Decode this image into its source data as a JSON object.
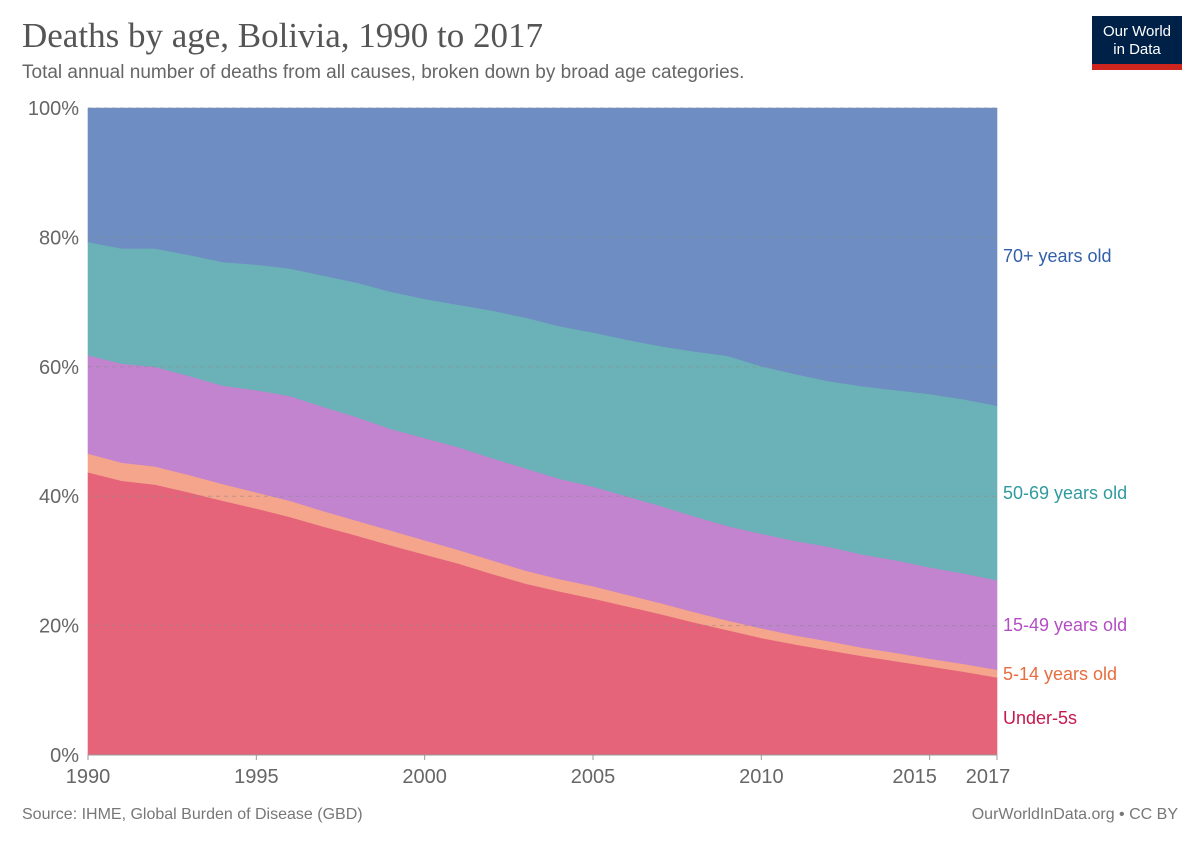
{
  "header": {
    "title": "Deaths by age, Bolivia, 1990 to 2017",
    "subtitle": "Total annual number of deaths from all causes, broken down by broad age categories."
  },
  "logo": {
    "line1": "Our World",
    "line2": "in Data"
  },
  "footer": {
    "source": "Source: IHME, Global Burden of Disease (GBD)",
    "license": "OurWorldInData.org • CC BY"
  },
  "chart_data": {
    "type": "area",
    "stacked": true,
    "normalized": true,
    "x": [
      1990,
      1991,
      1992,
      1993,
      1994,
      1995,
      1996,
      1997,
      1998,
      1999,
      2000,
      2001,
      2002,
      2003,
      2004,
      2005,
      2006,
      2007,
      2008,
      2009,
      2010,
      2011,
      2012,
      2013,
      2014,
      2015,
      2016,
      2017
    ],
    "xlim": [
      1990,
      2017
    ],
    "ylim": [
      0,
      100
    ],
    "y_ticks": [
      "0%",
      "20%",
      "40%",
      "60%",
      "80%",
      "100%"
    ],
    "x_ticks": [
      "1990",
      "1995",
      "2000",
      "2005",
      "2010",
      "2015",
      "2017"
    ],
    "grid": "horizontal dashed",
    "legend": "right, inline labels",
    "series": [
      {
        "name": "Under-5s",
        "color": "#e56479",
        "label_color": "#c6194f",
        "values": [
          43.7,
          42.4,
          41.8,
          40.6,
          39.3,
          38.1,
          36.8,
          35.3,
          33.9,
          32.4,
          31.0,
          29.6,
          28.0,
          26.5,
          25.3,
          24.2,
          23.0,
          21.8,
          20.5,
          19.3,
          18.1,
          17.1,
          16.2,
          15.3,
          14.5,
          13.7,
          12.9,
          12.0
        ]
      },
      {
        "name": "5-14 years old",
        "color": "#f4a58c",
        "label_color": "#e56d3f",
        "values": [
          2.9,
          2.8,
          2.8,
          2.7,
          2.6,
          2.5,
          2.5,
          2.4,
          2.3,
          2.3,
          2.2,
          2.1,
          2.1,
          2.0,
          1.9,
          1.9,
          1.8,
          1.7,
          1.6,
          1.5,
          1.5,
          1.4,
          1.4,
          1.3,
          1.3,
          1.2,
          1.2,
          1.2
        ]
      },
      {
        "name": "15-49 years old",
        "color": "#c283cf",
        "label_color": "#b34ec4",
        "values": [
          15.2,
          15.3,
          15.4,
          15.3,
          15.2,
          15.8,
          16.2,
          16.1,
          16.0,
          15.7,
          15.8,
          15.9,
          15.8,
          15.8,
          15.5,
          15.4,
          15.2,
          15.0,
          14.8,
          14.6,
          14.6,
          14.6,
          14.6,
          14.4,
          14.3,
          14.1,
          14.0,
          13.8
        ]
      },
      {
        "name": "50-69 years old",
        "color": "#6ab2b7",
        "label_color": "#2f9a9f",
        "values": [
          17.5,
          17.8,
          18.3,
          18.7,
          19.1,
          19.4,
          19.7,
          20.3,
          20.8,
          21.2,
          21.5,
          22.0,
          22.8,
          23.3,
          23.6,
          23.8,
          24.2,
          24.7,
          25.5,
          26.3,
          25.9,
          25.8,
          25.6,
          26.0,
          26.3,
          26.8,
          26.9,
          27.0
        ]
      },
      {
        "name": "70+ years old",
        "color": "#6e8dc2",
        "label_color": "#3360a9",
        "values": [
          20.7,
          21.7,
          21.7,
          22.7,
          23.8,
          24.2,
          24.8,
          25.9,
          27.0,
          28.4,
          29.5,
          30.4,
          31.3,
          32.4,
          33.7,
          34.7,
          35.8,
          36.8,
          37.6,
          38.3,
          39.9,
          41.1,
          42.2,
          43.0,
          43.6,
          44.2,
          45.0,
          46.0
        ]
      }
    ]
  }
}
